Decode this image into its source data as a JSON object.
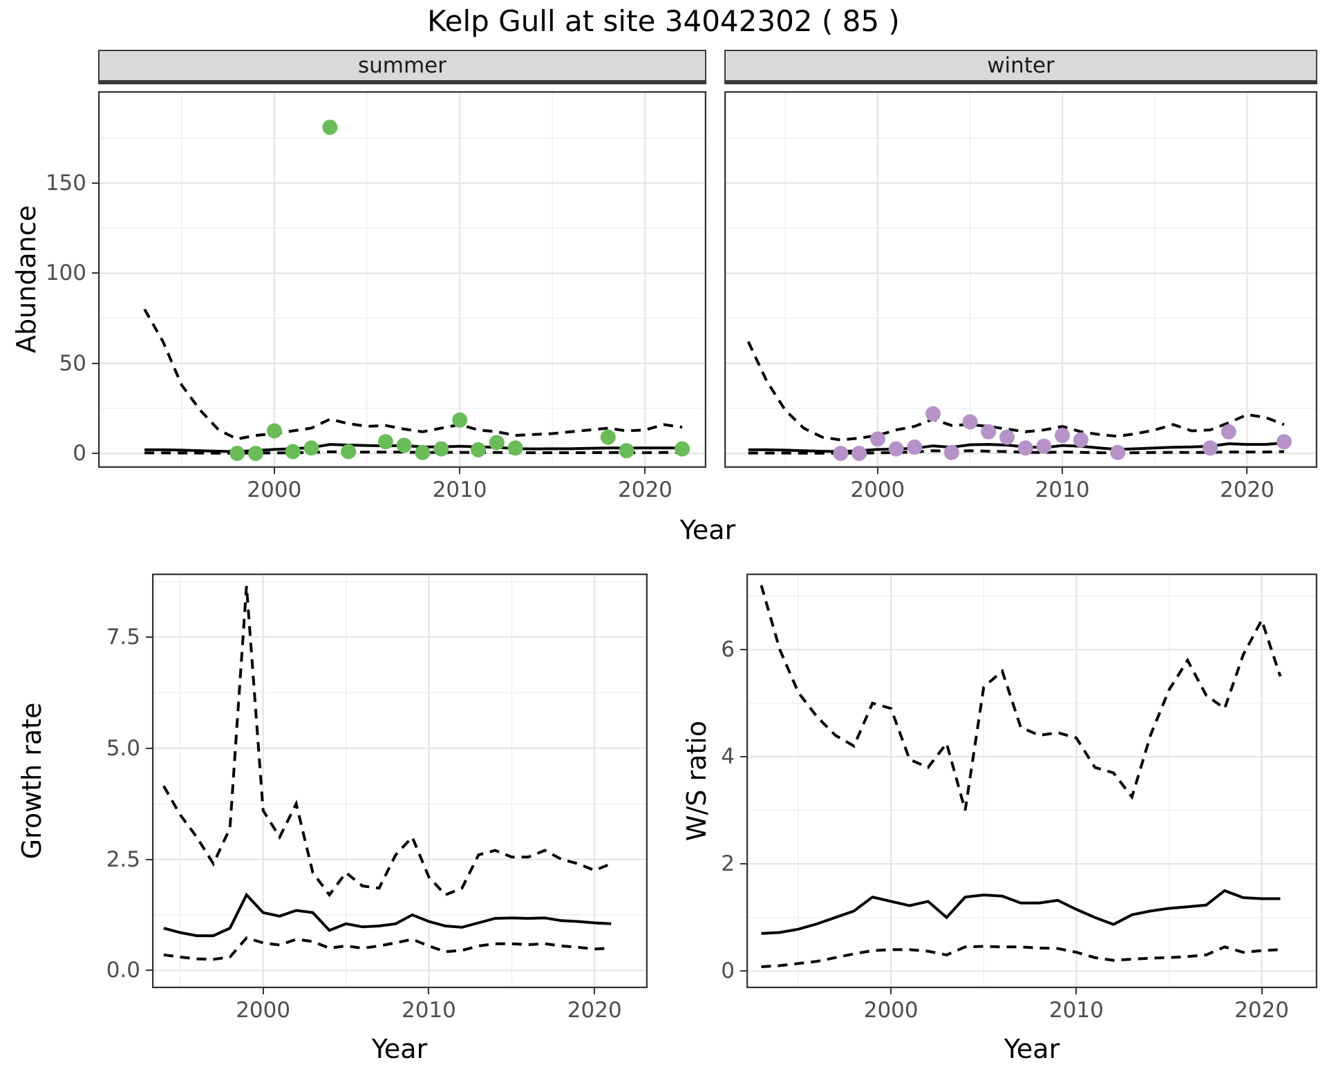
{
  "title": "Kelp Gull at site 34042302 ( 85 )",
  "facets": {
    "summer": "summer",
    "winter": "winter"
  },
  "axis_titles": {
    "top_y": "Abundance",
    "top_x": "Year",
    "bottom_left_y": "Growth rate",
    "bottom_left_x": "Year",
    "bottom_right_y": "W/S ratio",
    "bottom_right_x": "Year"
  },
  "colors": {
    "summer_point": "#6abc59",
    "winter_point": "#b592c8",
    "line": "#000000",
    "strip_bg": "#d9d9d9",
    "panel_border": "#333333",
    "grid_major": "#e5e5e5",
    "grid_minor": "#f0f0f0",
    "tick_label": "#4d4d4d"
  },
  "chart_data": [
    {
      "id": "summer_abundance",
      "type": "scatter",
      "title": "summer",
      "xlabel": "Year",
      "ylabel": "Abundance",
      "xlim": [
        1990.5,
        2023.3
      ],
      "ylim": [
        -8,
        201
      ],
      "xticks": [
        2000,
        2010,
        2020
      ],
      "xtick_labels": [
        "2000",
        "2010",
        "2020"
      ],
      "xticks_minor": [
        1995,
        2005,
        2015
      ],
      "yticks": [
        0,
        50,
        100,
        150
      ],
      "ytick_labels": [
        "0",
        "50",
        "100",
        "150"
      ],
      "yticks_minor": [
        25,
        75,
        125,
        175
      ],
      "point_color": "#6abc59",
      "points": {
        "x": [
          1998,
          1999,
          2000,
          2001,
          2002,
          2003,
          2004,
          2006,
          2007,
          2008,
          2009,
          2010,
          2011,
          2012,
          2013,
          2018,
          2019,
          2022
        ],
        "y": [
          0,
          0,
          12.5,
          1,
          3,
          181,
          1,
          6.5,
          4.5,
          0.5,
          2.5,
          18.5,
          2,
          6,
          3,
          9,
          1.5,
          2.5
        ]
      },
      "series": [
        {
          "name": "median",
          "style": "solid",
          "x": [
            1993,
            1994,
            1995,
            1996,
            1997,
            1998,
            1999,
            2000,
            2001,
            2002,
            2003,
            2004,
            2005,
            2006,
            2007,
            2008,
            2009,
            2010,
            2011,
            2012,
            2013,
            2014,
            2015,
            2016,
            2017,
            2018,
            2019,
            2020,
            2021,
            2022
          ],
          "y": [
            2,
            2,
            1.8,
            1.5,
            1.2,
            1,
            1.6,
            2.2,
            2.6,
            3.2,
            5,
            4.6,
            4.4,
            4.2,
            4.4,
            3.6,
            3.6,
            4,
            3.6,
            3.4,
            2.6,
            2.5,
            2.6,
            2.6,
            2.8,
            3,
            3,
            3,
            3,
            3
          ]
        },
        {
          "name": "upper_ci",
          "style": "dashed",
          "x": [
            1993,
            1994,
            1995,
            1996,
            1997,
            1998,
            1999,
            2000,
            2001,
            2002,
            2003,
            2004,
            2005,
            2006,
            2007,
            2008,
            2009,
            2010,
            2011,
            2012,
            2013,
            2014,
            2015,
            2016,
            2017,
            2018,
            2019,
            2020,
            2021,
            2022
          ],
          "y": [
            80,
            62,
            38,
            24,
            13,
            8,
            10,
            11,
            12.5,
            14,
            19,
            16.5,
            15,
            15.5,
            13.5,
            12,
            14,
            16,
            13,
            12,
            10,
            10.5,
            11,
            12,
            13,
            14,
            12.5,
            13,
            16,
            14.5
          ]
        },
        {
          "name": "lower_ci",
          "style": "dashed",
          "x": [
            1993,
            1994,
            1995,
            1996,
            1997,
            1998,
            1999,
            2000,
            2001,
            2002,
            2003,
            2004,
            2005,
            2006,
            2007,
            2008,
            2009,
            2010,
            2011,
            2012,
            2013,
            2014,
            2015,
            2016,
            2017,
            2018,
            2019,
            2020,
            2021,
            2022
          ],
          "y": [
            0.3,
            0.3,
            0.2,
            0.2,
            0.1,
            0.1,
            0.2,
            0.3,
            0.4,
            0.5,
            0.9,
            0.8,
            0.7,
            0.7,
            0.7,
            0.5,
            0.5,
            0.6,
            0.5,
            0.5,
            0.4,
            0.4,
            0.4,
            0.4,
            0.4,
            0.5,
            0.4,
            0.4,
            0.5,
            0.5
          ]
        }
      ]
    },
    {
      "id": "winter_abundance",
      "type": "scatter",
      "title": "winter",
      "xlabel": "Year",
      "ylabel": "Abundance",
      "xlim": [
        1991.7,
        2023.8
      ],
      "ylim": [
        -8,
        201
      ],
      "xticks": [
        2000,
        2010,
        2020
      ],
      "xtick_labels": [
        "2000",
        "2010",
        "2020"
      ],
      "xticks_minor": [
        1995,
        2005,
        2015
      ],
      "yticks": [
        0,
        50,
        100,
        150
      ],
      "ytick_labels": null,
      "yticks_minor": [
        25,
        75,
        125,
        175
      ],
      "point_color": "#b592c8",
      "points": {
        "x": [
          1998,
          1999,
          2000,
          2001,
          2002,
          2003,
          2004,
          2005,
          2006,
          2007,
          2008,
          2009,
          2010,
          2011,
          2013,
          2018,
          2019,
          2022
        ],
        "y": [
          0,
          0,
          8,
          2.5,
          3.5,
          22,
          0.5,
          17.5,
          12,
          9,
          3,
          4,
          10,
          7.5,
          0.5,
          3,
          12,
          6.5
        ]
      },
      "series": [
        {
          "name": "median",
          "style": "solid",
          "x": [
            1993,
            1994,
            1995,
            1996,
            1997,
            1998,
            1999,
            2000,
            2001,
            2002,
            2003,
            2004,
            2005,
            2006,
            2007,
            2008,
            2009,
            2010,
            2011,
            2012,
            2013,
            2014,
            2015,
            2016,
            2017,
            2018,
            2019,
            2020,
            2021,
            2022
          ],
          "y": [
            2,
            2,
            1.8,
            1.5,
            1.2,
            1,
            1.5,
            2.2,
            2.4,
            2.8,
            4.2,
            3.4,
            4.8,
            5,
            4.6,
            3.6,
            3.2,
            4.4,
            4,
            3,
            2.2,
            2.6,
            3,
            3.4,
            3.6,
            4,
            5.4,
            5,
            5,
            5.8
          ]
        },
        {
          "name": "upper_ci",
          "style": "dashed",
          "x": [
            1993,
            1994,
            1995,
            1996,
            1997,
            1998,
            1999,
            2000,
            2001,
            2002,
            2003,
            2004,
            2005,
            2006,
            2007,
            2008,
            2009,
            2010,
            2011,
            2012,
            2013,
            2014,
            2015,
            2016,
            2017,
            2018,
            2019,
            2020,
            2021,
            2022
          ],
          "y": [
            62,
            40,
            24,
            14,
            9,
            7.5,
            8.5,
            10,
            13,
            15,
            19,
            15.5,
            16,
            15,
            13.5,
            12,
            13,
            15,
            12,
            10.5,
            9.5,
            11,
            13,
            16,
            12.5,
            13,
            17,
            21.5,
            20,
            16
          ]
        },
        {
          "name": "lower_ci",
          "style": "dashed",
          "x": [
            1993,
            1994,
            1995,
            1996,
            1997,
            1998,
            1999,
            2000,
            2001,
            2002,
            2003,
            2004,
            2005,
            2006,
            2007,
            2008,
            2009,
            2010,
            2011,
            2012,
            2013,
            2014,
            2015,
            2016,
            2017,
            2018,
            2019,
            2020,
            2021,
            2022
          ],
          "y": [
            0.2,
            0.2,
            0.2,
            0.1,
            0.1,
            0.1,
            0.2,
            0.3,
            0.5,
            0.8,
            1.5,
            1.2,
            1.5,
            1.2,
            1,
            0.6,
            0.5,
            0.8,
            0.6,
            0.4,
            0.3,
            0.4,
            0.5,
            0.6,
            0.5,
            0.6,
            0.8,
            0.8,
            0.8,
            1
          ]
        }
      ]
    },
    {
      "id": "growth_rate",
      "type": "line",
      "title": "",
      "xlabel": "Year",
      "ylabel": "Growth rate",
      "xlim": [
        1993.3,
        2023.2
      ],
      "ylim": [
        -0.4,
        8.93
      ],
      "xticks": [
        2000,
        2010,
        2020
      ],
      "xtick_labels": [
        "2000",
        "2010",
        "2020"
      ],
      "xticks_minor": [
        1995,
        2005,
        2015
      ],
      "yticks": [
        0,
        2.5,
        5,
        7.5
      ],
      "ytick_labels": [
        "0.0",
        "2.5",
        "5.0",
        "7.5"
      ],
      "yticks_minor": [
        1.25,
        3.75,
        6.25,
        8.75
      ],
      "point_color": null,
      "points": null,
      "series": [
        {
          "name": "median",
          "style": "solid",
          "x": [
            1994,
            1995,
            1996,
            1997,
            1998,
            1999,
            2000,
            2001,
            2002,
            2003,
            2004,
            2005,
            2006,
            2007,
            2008,
            2009,
            2010,
            2011,
            2012,
            2013,
            2014,
            2015,
            2016,
            2017,
            2018,
            2019,
            2020,
            2021
          ],
          "y": [
            0.95,
            0.85,
            0.78,
            0.78,
            0.95,
            1.7,
            1.3,
            1.22,
            1.35,
            1.3,
            0.9,
            1.05,
            0.98,
            1,
            1.05,
            1.25,
            1.1,
            1,
            0.97,
            1.07,
            1.17,
            1.18,
            1.17,
            1.18,
            1.12,
            1.1,
            1.07,
            1.05
          ]
        },
        {
          "name": "upper_ci",
          "style": "dashed",
          "x": [
            1994,
            1995,
            1996,
            1997,
            1998,
            1999,
            2000,
            2001,
            2002,
            2003,
            2004,
            2005,
            2006,
            2007,
            2008,
            2009,
            2010,
            2011,
            2012,
            2013,
            2014,
            2015,
            2016,
            2017,
            2018,
            2019,
            2020,
            2021
          ],
          "y": [
            4.15,
            3.5,
            3,
            2.4,
            3.2,
            8.65,
            3.6,
            3,
            3.75,
            2.2,
            1.7,
            2.2,
            1.9,
            1.85,
            2.6,
            3,
            2.1,
            1.7,
            1.85,
            2.6,
            2.7,
            2.55,
            2.55,
            2.7,
            2.5,
            2.4,
            2.25,
            2.4
          ]
        },
        {
          "name": "lower_ci",
          "style": "dashed",
          "x": [
            1994,
            1995,
            1996,
            1997,
            1998,
            1999,
            2000,
            2001,
            2002,
            2003,
            2004,
            2005,
            2006,
            2007,
            2008,
            2009,
            2010,
            2011,
            2012,
            2013,
            2014,
            2015,
            2016,
            2017,
            2018,
            2019,
            2020,
            2021
          ],
          "y": [
            0.35,
            0.3,
            0.26,
            0.25,
            0.3,
            0.73,
            0.62,
            0.57,
            0.7,
            0.65,
            0.5,
            0.55,
            0.5,
            0.55,
            0.62,
            0.7,
            0.55,
            0.42,
            0.45,
            0.55,
            0.6,
            0.6,
            0.58,
            0.6,
            0.55,
            0.52,
            0.48,
            0.5
          ]
        }
      ]
    },
    {
      "id": "ws_ratio",
      "type": "line",
      "title": "",
      "xlabel": "Year",
      "ylabel": "W/S ratio",
      "xlim": [
        1992.2,
        2023.0
      ],
      "ylim": [
        -0.32,
        7.42
      ],
      "xticks": [
        2000,
        2010,
        2020
      ],
      "xtick_labels": [
        "2000",
        "2010",
        "2020"
      ],
      "xticks_minor": [
        1995,
        2005,
        2015
      ],
      "yticks": [
        0,
        2,
        4,
        6
      ],
      "ytick_labels": [
        "0",
        "2",
        "4",
        "6"
      ],
      "yticks_minor": [
        1,
        3,
        5,
        7
      ],
      "point_color": null,
      "points": null,
      "series": [
        {
          "name": "median",
          "style": "solid",
          "x": [
            1993,
            1994,
            1995,
            1996,
            1997,
            1998,
            1999,
            2000,
            2001,
            2002,
            2003,
            2004,
            2005,
            2006,
            2007,
            2008,
            2009,
            2010,
            2011,
            2012,
            2013,
            2014,
            2015,
            2016,
            2017,
            2018,
            2019,
            2020,
            2021
          ],
          "y": [
            0.7,
            0.72,
            0.78,
            0.88,
            1,
            1.12,
            1.38,
            1.3,
            1.22,
            1.3,
            1,
            1.38,
            1.42,
            1.4,
            1.27,
            1.27,
            1.32,
            1.15,
            1,
            0.87,
            1.05,
            1.12,
            1.17,
            1.2,
            1.23,
            1.5,
            1.37,
            1.35,
            1.35
          ]
        },
        {
          "name": "upper_ci",
          "style": "dashed",
          "x": [
            1993,
            1994,
            1995,
            1996,
            1997,
            1998,
            1999,
            2000,
            2001,
            2002,
            2003,
            2004,
            2005,
            2006,
            2007,
            2008,
            2009,
            2010,
            2011,
            2012,
            2013,
            2014,
            2015,
            2016,
            2017,
            2018,
            2019,
            2020,
            2021
          ],
          "y": [
            7.2,
            6,
            5.2,
            4.75,
            4.4,
            4.2,
            5,
            4.9,
            3.95,
            3.8,
            4.25,
            3,
            5.3,
            5.6,
            4.55,
            4.4,
            4.45,
            4.35,
            3.8,
            3.7,
            3.25,
            4.4,
            5.25,
            5.8,
            5.15,
            4.9,
            5.9,
            6.55,
            5.5
          ]
        },
        {
          "name": "lower_ci",
          "style": "dashed",
          "x": [
            1993,
            1994,
            1995,
            1996,
            1997,
            1998,
            1999,
            2000,
            2001,
            2002,
            2003,
            2004,
            2005,
            2006,
            2007,
            2008,
            2009,
            2010,
            2011,
            2012,
            2013,
            2014,
            2015,
            2016,
            2017,
            2018,
            2019,
            2020,
            2021
          ],
          "y": [
            0.08,
            0.1,
            0.14,
            0.18,
            0.25,
            0.32,
            0.38,
            0.4,
            0.4,
            0.37,
            0.3,
            0.45,
            0.46,
            0.45,
            0.45,
            0.43,
            0.42,
            0.35,
            0.25,
            0.2,
            0.22,
            0.24,
            0.25,
            0.27,
            0.3,
            0.45,
            0.35,
            0.38,
            0.4
          ]
        }
      ]
    }
  ]
}
